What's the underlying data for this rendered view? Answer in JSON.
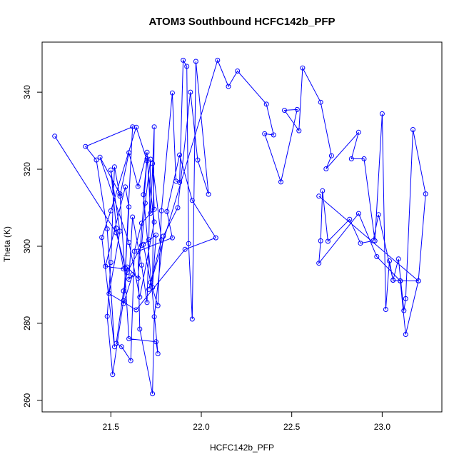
{
  "chart_data": {
    "type": "line",
    "title": "ATOM3 Southbound HCFC142b_PFP",
    "xlabel": "HCFC142b_PFP",
    "ylabel": "Theta (K)",
    "xlim": [
      21.12,
      23.33
    ],
    "ylim": [
      257,
      353
    ],
    "xticks": [
      21.5,
      22.0,
      22.5,
      23.0
    ],
    "yticks": [
      260,
      280,
      300,
      320,
      340
    ],
    "xtick_labels": [
      "21.5",
      "22.0",
      "22.5",
      "23.0"
    ],
    "ytick_labels": [
      "260",
      "280",
      "300",
      "320",
      "340"
    ],
    "grid": false,
    "legend": "none",
    "series_color": "#0000ff",
    "marker": "open-circle",
    "x": [
      21.19,
      21.53,
      21.58,
      21.62,
      21.36,
      21.42,
      21.48,
      21.52,
      21.45,
      21.5,
      21.64,
      21.7,
      21.74,
      21.66,
      21.6,
      21.44,
      21.55,
      21.6,
      21.75,
      21.76,
      21.68,
      21.7,
      21.65,
      21.59,
      21.57,
      21.51,
      21.48,
      21.5,
      21.52,
      21.55,
      21.6,
      21.65,
      21.7,
      21.72,
      21.74,
      21.73,
      21.75,
      21.68,
      21.72,
      21.76,
      21.78,
      21.84,
      21.86,
      21.88,
      21.9,
      21.92,
      21.93,
      21.95,
      21.97,
      22.04,
      21.98,
      21.94,
      21.87,
      21.79,
      21.74,
      21.73,
      21.66,
      21.65,
      21.84,
      21.81,
      21.88,
      21.95,
      22.08,
      21.91,
      21.64,
      21.49,
      21.55,
      21.5,
      21.53,
      21.57,
      21.47,
      21.58,
      21.6,
      21.57,
      21.62,
      21.6,
      21.62,
      21.67,
      21.7,
      21.71,
      21.72,
      21.69,
      21.67,
      21.59,
      21.57,
      21.53,
      21.56,
      21.61,
      21.63,
      21.67,
      21.74,
      21.73,
      21.78,
      21.71,
      22.09,
      22.15,
      22.2,
      22.36,
      22.4,
      22.35,
      22.44,
      22.53,
      22.46,
      22.54,
      22.56,
      22.66,
      22.72,
      22.69,
      22.87,
      22.83,
      22.9,
      22.96,
      23.0,
      23.02,
      23.04,
      23.06,
      23.09,
      23.12,
      23.13,
      23.17,
      23.24,
      23.2,
      23.1,
      23.06,
      22.98,
      22.95,
      22.88,
      22.82,
      22.7,
      22.67,
      22.66,
      22.65,
      22.87,
      22.97,
      23.1,
      23.13,
      23.2,
      22.65
    ],
    "y": [
      328.6,
      303.5,
      294.3,
      331.0,
      325.9,
      322.4,
      304.5,
      273.9,
      302.3,
      309.2,
      330.9,
      322.2,
      306.3,
      286.8,
      301.0,
      323.1,
      313.6,
      276.0,
      275.2,
      272.1,
      313.4,
      322.7,
      291.7,
      294.6,
      285.9,
      266.7,
      281.8,
      295.8,
      320.6,
      313.0,
      324.3,
      315.5,
      324.4,
      308.6,
      331.0,
      289.3,
      302.9,
      300.5,
      290.6,
      284.6,
      309.2,
      339.8,
      316.9,
      316.6,
      348.3,
      346.7,
      300.7,
      281.1,
      348.0,
      313.5,
      322.4,
      340.0,
      310.0,
      302.6,
      281.7,
      261.7,
      278.5,
      298.7,
      302.2,
      309.0,
      323.7,
      311.9,
      302.2,
      299.2,
      283.5,
      287.7,
      303.9,
      319.8,
      304.7,
      294.1,
      294.8,
      315.4,
      310.2,
      285.1,
      292.6,
      291.4,
      307.6,
      295.1,
      285.4,
      301.7,
      322.6,
      311.2,
      300.2,
      293.2,
      288.4,
      274.8,
      273.9,
      270.3,
      298.7,
      306.0,
      309.6,
      321.5,
      301.6,
      288.8,
      348.3,
      341.5,
      345.5,
      336.9,
      328.9,
      329.2,
      316.7,
      335.5,
      335.3,
      330.0,
      346.3,
      337.4,
      323.5,
      320.1,
      329.6,
      322.7,
      322.7,
      301.4,
      334.4,
      283.6,
      296.2,
      291.2,
      296.7,
      283.3,
      286.4,
      330.3,
      313.6,
      291.0,
      291.0,
      291.2,
      308.2,
      301.4,
      300.8,
      307.0,
      301.3,
      314.4,
      301.4,
      295.6,
      308.5,
      297.3,
      291.0,
      277.1,
      291.0,
      313.0
    ]
  }
}
